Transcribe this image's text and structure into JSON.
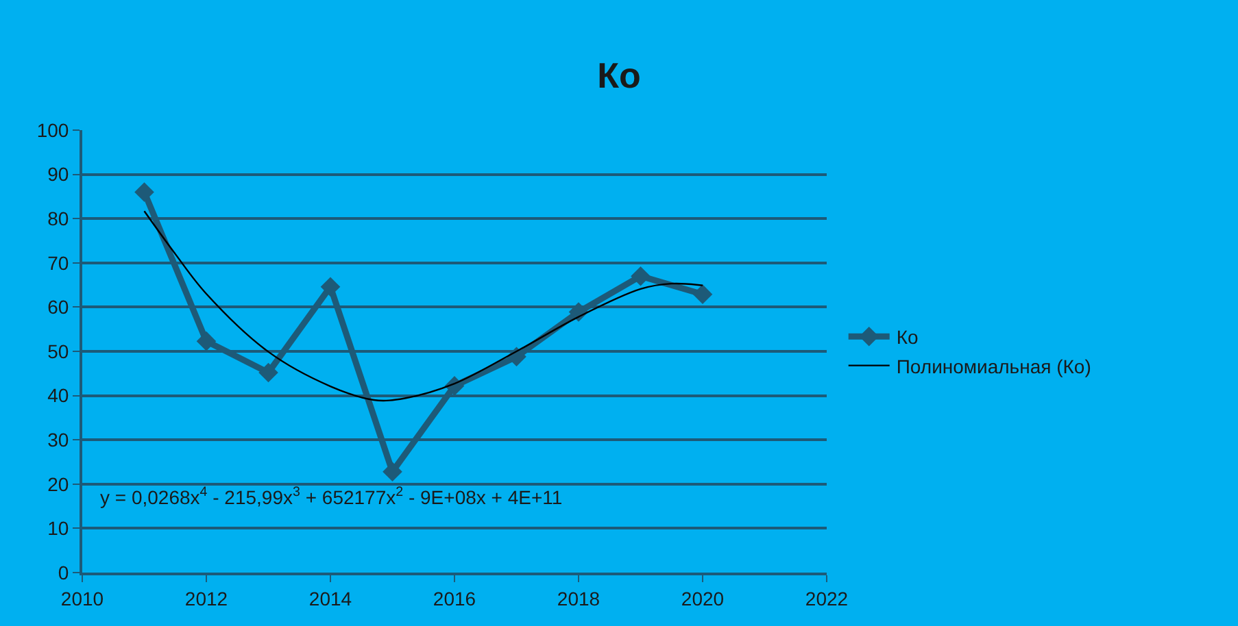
{
  "chart_data": {
    "type": "line",
    "title": "Ко",
    "x": [
      2011,
      2012,
      2013,
      2014,
      2015,
      2016,
      2017,
      2018,
      2019,
      2020
    ],
    "series": [
      {
        "name": "Ко",
        "color": "#1d5a78",
        "marker": "diamond",
        "values": [
          86,
          52.3,
          45.2,
          64.6,
          22.8,
          42.2,
          48.8,
          58.9,
          67,
          62.9
        ]
      },
      {
        "name": "Полиномиальная (Ко)",
        "color": "#000000",
        "marker": "none",
        "x": [
          2011,
          2011.5,
          2012,
          2013,
          2014,
          2014.7,
          2015.2,
          2016,
          2017,
          2018,
          2019,
          2019.5,
          2020
        ],
        "values": [
          81.7,
          72,
          63,
          49.9,
          42.1,
          39,
          39.4,
          42.7,
          50,
          57.8,
          64.1,
          65.3,
          64.9
        ]
      }
    ],
    "xlim": [
      2010,
      2022
    ],
    "xticks": [
      2010,
      2012,
      2014,
      2016,
      2018,
      2020,
      2022
    ],
    "ylim": [
      0,
      100
    ],
    "yticks": [
      0,
      10,
      20,
      30,
      40,
      50,
      60,
      70,
      80,
      90,
      100
    ],
    "grid": "y",
    "legend": "right",
    "line_style": "solid",
    "annotations": [
      "y = 0,0268x$^{4}$ - 215,99x$^{3}$ + 652177x$^{2}$ - 9E+08x + 4E+11"
    ]
  }
}
